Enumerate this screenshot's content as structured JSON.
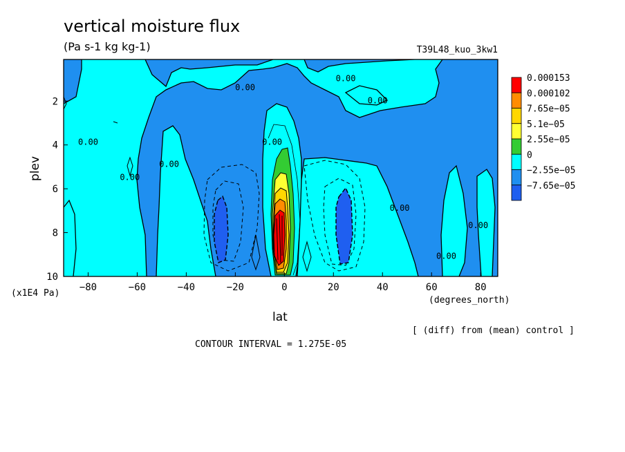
{
  "header": {
    "title": "vertical moisture flux",
    "units": "(Pa s-1 kg kg-1)",
    "run": "T39L48_kuo_3kw1",
    "diff_note": "[ (diff) from (mean) control ]",
    "contour_interval": "CONTOUR INTERVAL = 1.275E-05"
  },
  "chart_data": {
    "type": "heatmap",
    "title": "vertical moisture flux",
    "subtitle": "(Pa s-1 kg kg-1)",
    "xlabel": "lat",
    "xunits": "(degrees_north)",
    "ylabel": "plev",
    "yunits": "(x1E4 Pa)",
    "xlim": [
      -90,
      87
    ],
    "ylim": [
      10,
      0.1
    ],
    "x_ticks": [
      -80,
      -60,
      -40,
      -20,
      0,
      20,
      40,
      60,
      80
    ],
    "x_tick_labels": [
      "−80",
      "−60",
      "−40",
      "−20",
      "0",
      "20",
      "40",
      "60",
      "80"
    ],
    "y_ticks": [
      2,
      4,
      6,
      8,
      10
    ],
    "y_tick_labels": [
      "2",
      "4",
      "6",
      "8",
      "10"
    ],
    "contour_interval": 1.275e-05,
    "colorbar": {
      "labels": [
        "0.000153",
        "0.000102",
        "7.65e−05",
        "5.1e−05",
        "2.55e−05",
        "0",
        "−2.55e−05",
        "−7.65e−05"
      ],
      "colors": [
        "#ff0000",
        "#ff8c00",
        "#ffd700",
        "#ffff33",
        "#33cc33",
        "#00ffff",
        "#1f8ff0",
        "#1f5ff0"
      ]
    },
    "contour_labels": [
      {
        "text": "0.00",
        "lat": -16,
        "plev": 1.5
      },
      {
        "text": "0.00",
        "lat": 25,
        "plev": 1.1
      },
      {
        "text": "0.00",
        "lat": 38,
        "plev": 2.1
      },
      {
        "text": "0.00",
        "lat": -80,
        "plev": 4.0
      },
      {
        "text": "0.00",
        "lat": -63,
        "plev": 5.6
      },
      {
        "text": "0.00",
        "lat": -47,
        "plev": 5.0
      },
      {
        "text": "0.00",
        "lat": -5,
        "plev": 4.0
      },
      {
        "text": "0.00",
        "lat": 47,
        "plev": 7.0
      },
      {
        "text": "0.00",
        "lat": 79,
        "plev": 7.8
      },
      {
        "text": "0.00",
        "lat": 66,
        "plev": 9.2
      }
    ],
    "regions": [
      {
        "name": "background",
        "level": "0 to 2.55e-05",
        "color": "#00ffff"
      },
      {
        "name": "upper-negative-band",
        "level": "-2.55e-05 to 0",
        "color": "#1f8ff0"
      },
      {
        "name": "equatorial-maximum",
        "level": "up to 0.000153",
        "lat": 0,
        "plev": 8
      },
      {
        "name": "south-subtropical-minimum",
        "level": "-7.65e-05",
        "lat": -25,
        "plev": 8
      },
      {
        "name": "north-subtropical-minimum",
        "level": "-7.65e-05",
        "lat": 25,
        "plev": 8
      }
    ]
  }
}
